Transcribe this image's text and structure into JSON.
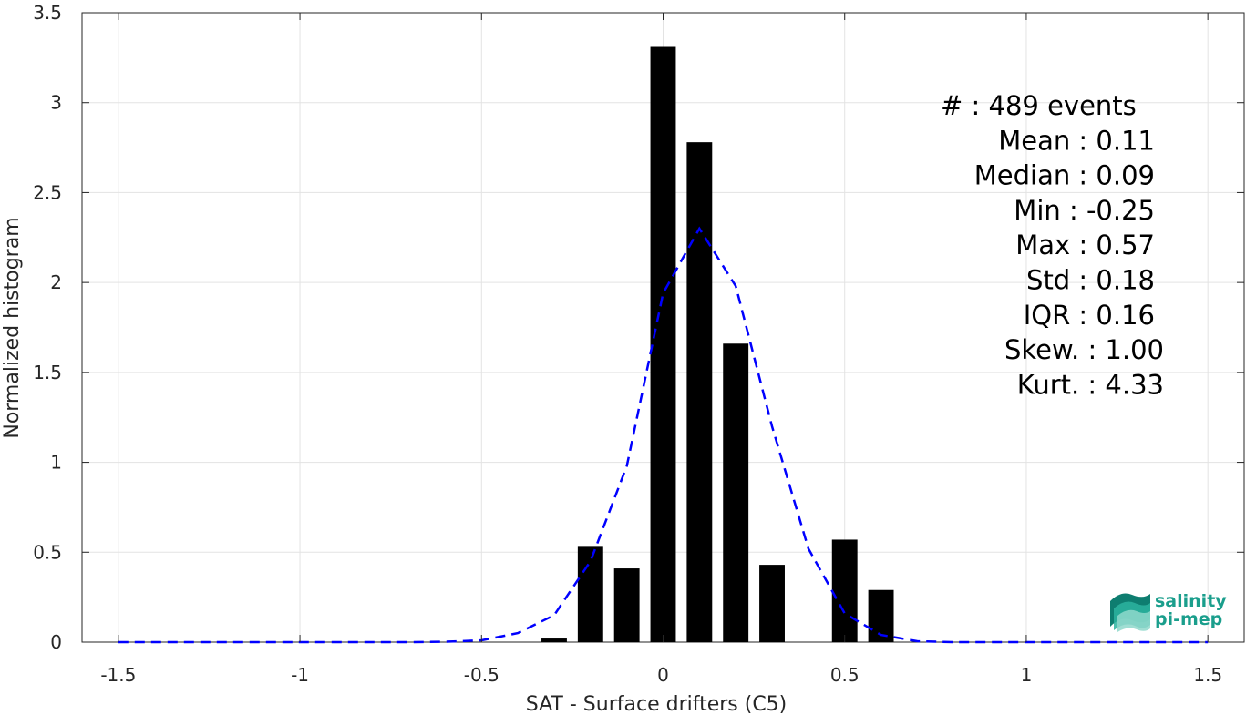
{
  "chart_data": {
    "type": "bar",
    "xlabel": "SAT - Surface drifters (C5)",
    "ylabel": "Normalized histogram",
    "xlim": [
      -1.6,
      1.6
    ],
    "ylim": [
      0,
      3.5
    ],
    "xticks": [
      -1.5,
      -1,
      -0.5,
      0,
      0.5,
      1,
      1.5
    ],
    "xtick_labels": [
      "-1.5",
      "-1",
      "-0.5",
      "0",
      "0.5",
      "1",
      "1.5"
    ],
    "yticks": [
      0,
      0.5,
      1,
      1.5,
      2,
      2.5,
      3,
      3.5
    ],
    "ytick_labels": [
      "0",
      "0.5",
      "1",
      "1.5",
      "2",
      "2.5",
      "3",
      "3.5"
    ],
    "grid": true,
    "bar_width": 0.07,
    "bars": {
      "x": [
        -0.3,
        -0.2,
        -0.1,
        0.0,
        0.1,
        0.2,
        0.3,
        0.5,
        0.6
      ],
      "values": [
        0.02,
        0.53,
        0.41,
        3.31,
        2.78,
        1.66,
        0.43,
        0.57,
        0.29
      ],
      "color": "#000000"
    },
    "series": [
      {
        "type": "line",
        "style": "dashed",
        "color": "#0000ff",
        "x": [
          -1.5,
          -1.4,
          -1.3,
          -1.2,
          -1.1,
          -1.0,
          -0.9,
          -0.8,
          -0.7,
          -0.6,
          -0.5,
          -0.4,
          -0.3,
          -0.2,
          -0.1,
          0.0,
          0.1,
          0.2,
          0.3,
          0.4,
          0.5,
          0.6,
          0.7,
          0.8,
          0.9,
          1.0,
          1.1,
          1.2,
          1.3,
          1.4,
          1.5
        ],
        "y": [
          0,
          0,
          0,
          0,
          0,
          0,
          0,
          0,
          0,
          0.002,
          0.01,
          0.05,
          0.15,
          0.45,
          0.98,
          1.94,
          2.3,
          1.98,
          1.2,
          0.52,
          0.16,
          0.04,
          0.005,
          0,
          0,
          0,
          0,
          0,
          0,
          0,
          0
        ]
      }
    ],
    "annotations": [
      "#  : 489 events",
      "Mean : 0.11",
      "Median : 0.09",
      "Min : -0.25",
      "Max : 0.57",
      "Std : 0.18",
      "IQR : 0.16",
      "Skew. : 1.00",
      "Kurt. : 4.33"
    ]
  },
  "logo": {
    "line1": "salinity",
    "line2": "pi-mep",
    "color": "#1a9e8c"
  }
}
